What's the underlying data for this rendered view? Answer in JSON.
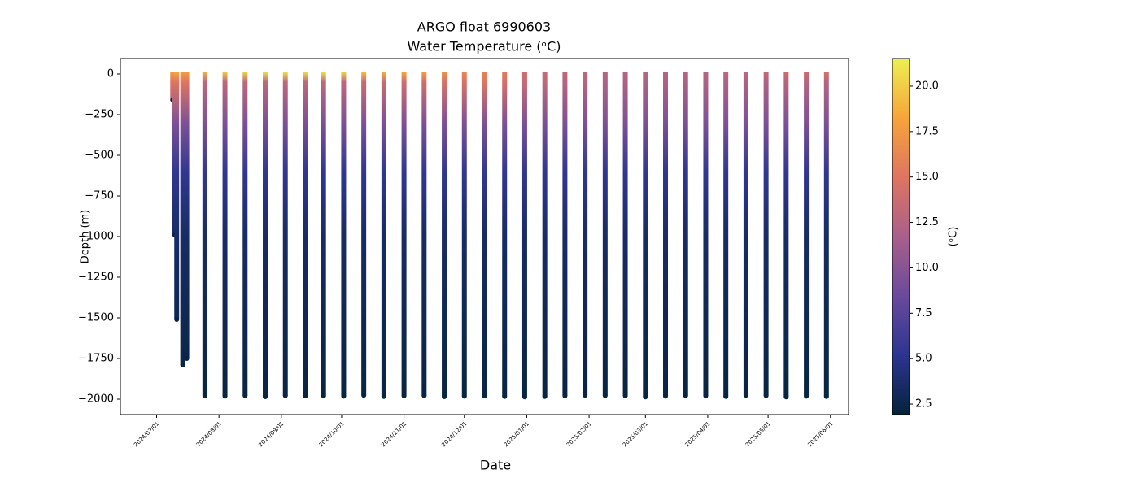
{
  "chart_data": {
    "type": "profile",
    "title": "ARGO float 6990603",
    "subtitle": "Water Temperature (ᵒC)",
    "xlabel": "Date",
    "ylabel": "Depth (m)",
    "xlim": [
      "2024/06/13",
      "2025/06/10"
    ],
    "xticks": [
      "2024/07/01",
      "2024/08/01",
      "2024/09/01",
      "2024/10/01",
      "2024/11/01",
      "2024/12/01",
      "2025/01/01",
      "2025/02/01",
      "2025/03/01",
      "2025/04/01",
      "2025/05/01",
      "2025/06/01"
    ],
    "ylim": [
      -2095,
      95
    ],
    "yticks": [
      {
        "value": -2000,
        "label": "−2000"
      },
      {
        "value": -1750,
        "label": "−1750"
      },
      {
        "value": -1500,
        "label": "−1500"
      },
      {
        "value": -1250,
        "label": "−1250"
      },
      {
        "value": -1000,
        "label": "−1000"
      },
      {
        "value": -750,
        "label": "−750"
      },
      {
        "value": -500,
        "label": "−500"
      },
      {
        "value": -250,
        "label": "−250"
      },
      0
    ],
    "depth_levels": [
      0,
      -50,
      -300,
      -600,
      -1000,
      -2000
    ],
    "colorbar": {
      "label": "(ᵒC)",
      "clim": [
        1.92,
        21.52
      ],
      "ticks": [
        {
          "value": 2.5,
          "label": "2.5"
        },
        {
          "value": 5,
          "label": "5.0"
        },
        {
          "value": 7.5,
          "label": "7.5"
        },
        {
          "value": 10,
          "label": "10.0"
        },
        {
          "value": 12.5,
          "label": "12.5"
        },
        {
          "value": 15,
          "label": "15.0"
        },
        {
          "value": 17.5,
          "label": "17.5"
        },
        {
          "value": 20,
          "label": "20.0"
        }
      ],
      "colormap": [
        "#04233a",
        "#2b3591",
        "#6a4a9c",
        "#a8608a",
        "#df7461",
        "#f7a43a",
        "#ecf052"
      ]
    },
    "x": [
      "2024/07/09",
      "2024/07/10",
      "2024/07/11",
      "2024/07/14",
      "2024/07/16",
      "2024/07/25",
      "2024/08/04",
      "2024/08/14",
      "2024/08/24",
      "2024/09/03",
      "2024/09/13",
      "2024/09/22",
      "2024/10/02",
      "2024/10/12",
      "2024/10/22",
      "2024/11/01",
      "2024/11/11",
      "2024/11/21",
      "2024/12/01",
      "2024/12/11",
      "2024/12/21",
      "2024/12/31",
      "2025/01/10",
      "2025/01/20",
      "2025/01/30",
      "2025/02/09",
      "2025/02/19",
      "2025/03/01",
      "2025/03/11",
      "2025/03/21",
      "2025/03/31",
      "2025/04/10",
      "2025/04/20",
      "2025/04/30",
      "2025/05/10",
      "2025/05/20",
      "2025/05/30"
    ],
    "values": [
      -160,
      -990,
      -1510,
      -1790,
      -1750,
      -1980,
      -1982,
      -1978,
      -1985,
      -1978,
      -1980,
      -1980,
      -1982,
      -1976,
      -1984,
      -1980,
      -1978,
      -1985,
      -1982,
      -1980,
      -1984,
      -1986,
      -1984,
      -1980,
      -1976,
      -1978,
      -1980,
      -1986,
      -1982,
      -1978,
      -1980,
      -1984,
      -1976,
      -1978,
      -1986,
      -1982,
      -1984
    ],
    "temps": [
      [
        18,
        15,
        9.5,
        5.5,
        3.5,
        2.2
      ],
      [
        18,
        15,
        9.5,
        5.5,
        3.5,
        2.2
      ],
      [
        18.5,
        15,
        9.5,
        5.5,
        3.5,
        2.2
      ],
      [
        18,
        15,
        9.5,
        5.5,
        3.5,
        2.2
      ],
      [
        18,
        15,
        9.5,
        5.5,
        3.5,
        2.2
      ],
      [
        19,
        13,
        9.5,
        5.5,
        3.5,
        2.2
      ],
      [
        20,
        13,
        9.5,
        5.5,
        3.5,
        2.2
      ],
      [
        20.5,
        13,
        9.5,
        5.5,
        3.5,
        2.2
      ],
      [
        21,
        13,
        9.5,
        5.5,
        3.5,
        2.2
      ],
      [
        21,
        13,
        9.5,
        5.5,
        3.5,
        2.2
      ],
      [
        21,
        13,
        9.5,
        5.5,
        3.5,
        2.2
      ],
      [
        21,
        13,
        9.5,
        5.5,
        3.5,
        2.2
      ],
      [
        20.5,
        13,
        9.5,
        5.5,
        3.5,
        2.2
      ],
      [
        19.5,
        13.5,
        9.5,
        5.5,
        3.5,
        2.2
      ],
      [
        19,
        13.5,
        9.5,
        5.5,
        3.5,
        2.2
      ],
      [
        18.5,
        14,
        9.5,
        5.5,
        3.5,
        2.2
      ],
      [
        18,
        14,
        9.5,
        5.5,
        3.5,
        2.2
      ],
      [
        17,
        14.5,
        9.5,
        5.5,
        3.5,
        2.2
      ],
      [
        16.5,
        14.5,
        9.5,
        5.5,
        3.5,
        2.2
      ],
      [
        16,
        15,
        9.5,
        5.5,
        3.5,
        2.2
      ],
      [
        15.5,
        14.5,
        9.5,
        5.5,
        3.5,
        2.2
      ],
      [
        14,
        13.5,
        9.5,
        5.5,
        3.5,
        2.2
      ],
      [
        13.5,
        13,
        9.5,
        5.5,
        3.5,
        2.2
      ],
      [
        13,
        12.5,
        9.5,
        5.5,
        3.5,
        2.2
      ],
      [
        13,
        12.5,
        9.5,
        5.5,
        3.5,
        2.2
      ],
      [
        12.5,
        12,
        9.5,
        5.5,
        3.5,
        2.2
      ],
      [
        12.5,
        12,
        9.5,
        5.5,
        3.5,
        2.2
      ],
      [
        12.5,
        12,
        9.5,
        5.5,
        3.5,
        2.2
      ],
      [
        12.5,
        12,
        9.5,
        5.5,
        3.5,
        2.2
      ],
      [
        12.5,
        12,
        9.5,
        5.5,
        3.5,
        2.2
      ],
      [
        12.5,
        12,
        9.5,
        5.5,
        3.5,
        2.2
      ],
      [
        13,
        12,
        9.5,
        5.5,
        3.5,
        2.2
      ],
      [
        13,
        12,
        9.5,
        5.5,
        3.5,
        2.2
      ],
      [
        13.5,
        12,
        9.5,
        5.5,
        3.5,
        2.2
      ],
      [
        14,
        12.5,
        9.5,
        5.5,
        3.5,
        2.2
      ],
      [
        14,
        12.5,
        9.5,
        5.5,
        3.5,
        2.2
      ],
      [
        14.5,
        12.5,
        9.5,
        5.5,
        3.5,
        2.2
      ]
    ]
  }
}
